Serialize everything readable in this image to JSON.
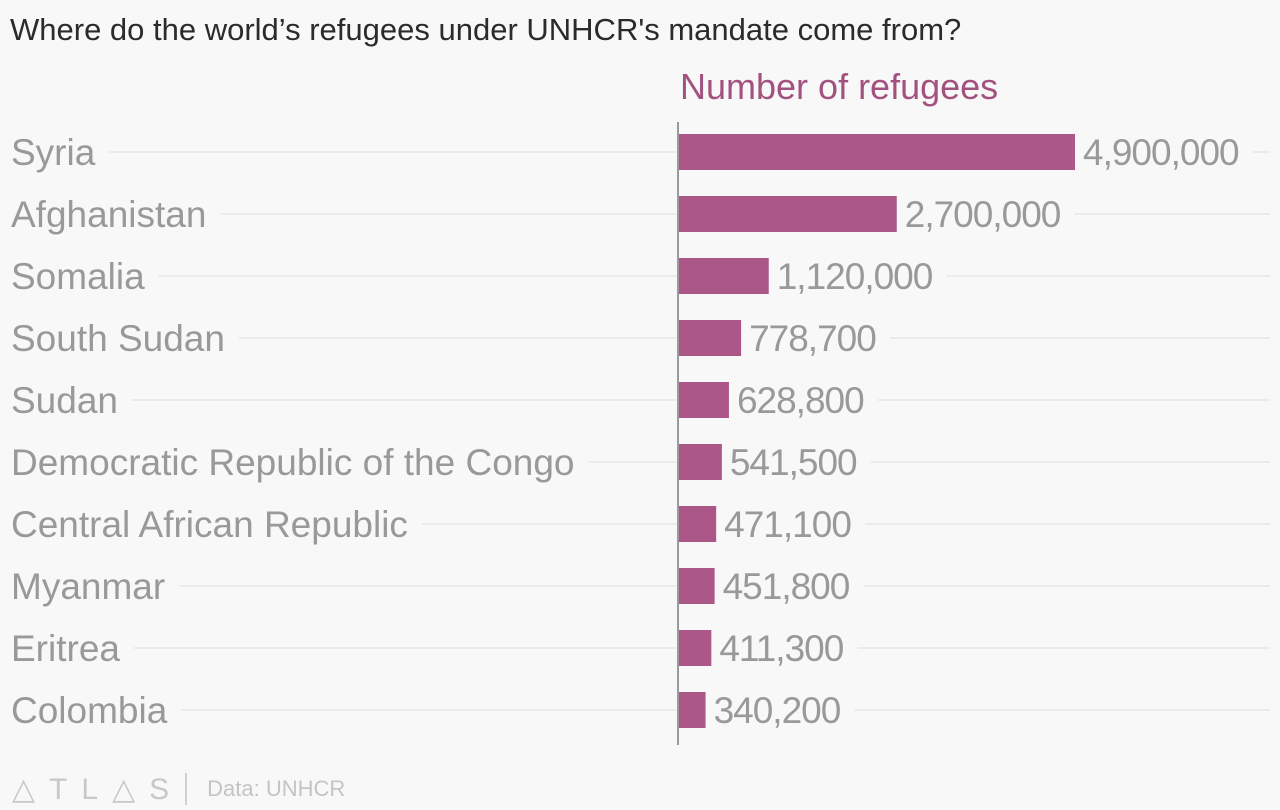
{
  "title": "Where do the world’s refugees under UNHCR's mandate come from?",
  "footer": {
    "logo": "ATLAS",
    "source": "Data: UNHCR"
  },
  "colors": {
    "bar": "#ab5787",
    "label": "#999999",
    "grid": "#ebebeb",
    "subtitle": "#a3527f"
  },
  "chart_data": {
    "type": "bar",
    "orientation": "horizontal",
    "title": "Where do the world’s refugees under UNHCR's mandate come from?",
    "series_label": "Number of refugees",
    "categories": [
      "Syria",
      "Afghanistan",
      "Somalia",
      "South Sudan",
      "Sudan",
      "Democratic Republic of the Congo",
      "Central African Republic",
      "Myanmar",
      "Eritrea",
      "Colombia"
    ],
    "values": [
      4900000,
      2700000,
      1120000,
      778700,
      628800,
      541500,
      471100,
      451800,
      411300,
      340200
    ],
    "value_labels": [
      "4,900,000",
      "2,700,000",
      "1,120,000",
      "778,700",
      "628,800",
      "541,500",
      "471,100",
      "451,800",
      "411,300",
      "340,200"
    ],
    "xlim": [
      0,
      4900000
    ],
    "grid": true,
    "legend": "none"
  }
}
